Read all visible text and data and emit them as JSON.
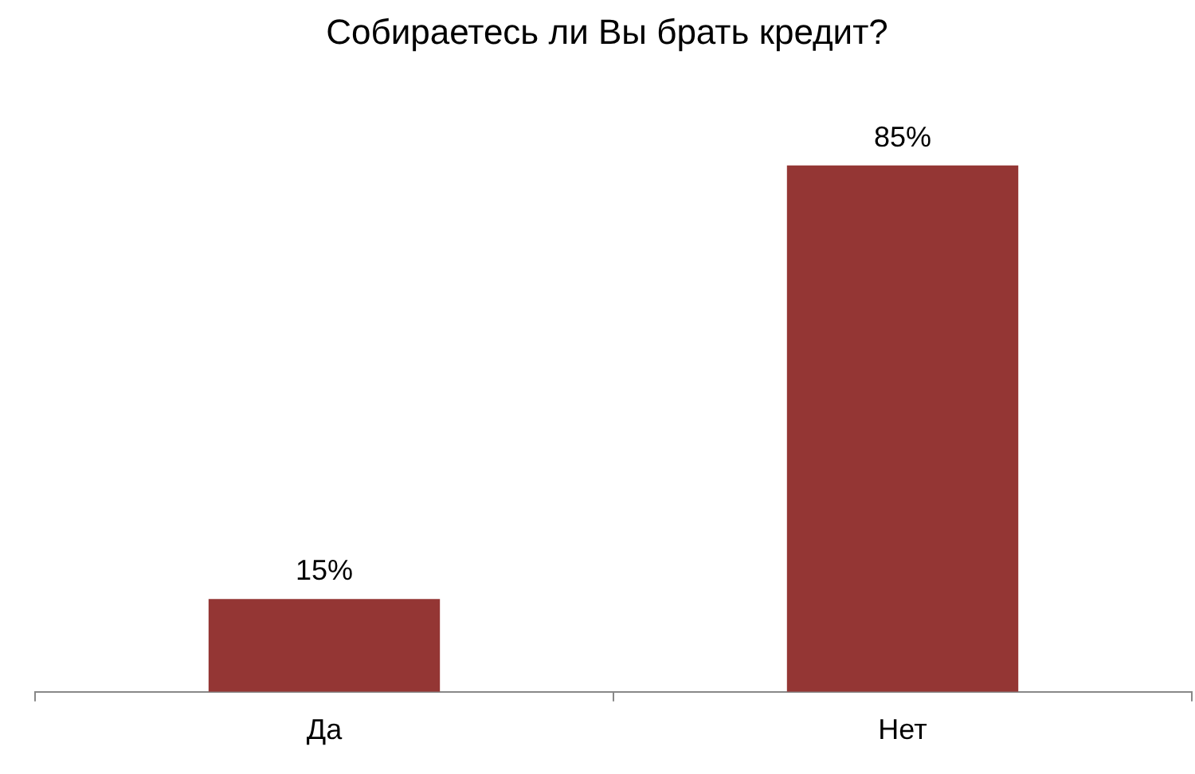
{
  "chart_data": {
    "type": "bar",
    "title": "Собираетесь ли Вы брать кредит?",
    "categories": [
      "Да",
      "Нет"
    ],
    "values": [
      15,
      85
    ],
    "value_labels": [
      "15%",
      "85%"
    ],
    "color": "#943634",
    "relative": false,
    "grid": false,
    "legend": false
  }
}
